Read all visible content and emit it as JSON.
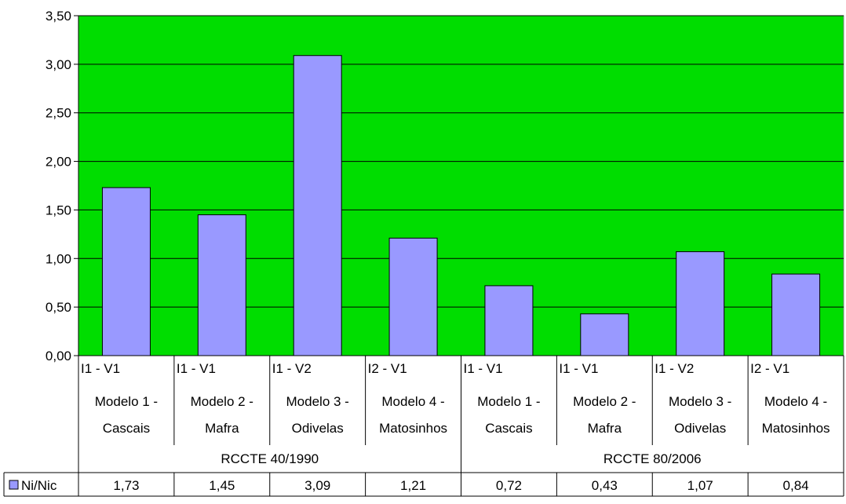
{
  "chart_data": {
    "type": "bar",
    "ylim": [
      0,
      3.5
    ],
    "y_ticks": [
      "0,00",
      "0,50",
      "1,00",
      "1,50",
      "2,00",
      "2,50",
      "3,00",
      "3,50"
    ],
    "grid": true,
    "plot_background": "#00DD00",
    "bar_color": "#9999FF",
    "categories": [
      {
        "code": "I1 - V1",
        "line1": "Modelo 1 -",
        "line2": "Cascais"
      },
      {
        "code": "I1 - V1",
        "line1": "Modelo 2 -",
        "line2": "Mafra"
      },
      {
        "code": "I1 - V2",
        "line1": "Modelo 3 -",
        "line2": "Odivelas"
      },
      {
        "code": "I2 - V1",
        "line1": "Modelo 4 -",
        "line2": "Matosinhos"
      },
      {
        "code": "I1 - V1",
        "line1": "Modelo 1 -",
        "line2": "Cascais"
      },
      {
        "code": "I1 - V1",
        "line1": "Modelo 2 -",
        "line2": "Mafra"
      },
      {
        "code": "I1 - V2",
        "line1": "Modelo 3 -",
        "line2": "Odivelas"
      },
      {
        "code": "I2 - V1",
        "line1": "Modelo 4 -",
        "line2": "Matosinhos"
      }
    ],
    "groups": [
      {
        "label": "RCCTE 40/1990",
        "span": 4
      },
      {
        "label": "RCCTE 80/2006",
        "span": 4
      }
    ],
    "series": [
      {
        "name": "Ni/Nic",
        "values": [
          1.73,
          1.45,
          3.09,
          1.21,
          0.72,
          0.43,
          1.07,
          0.84
        ],
        "value_labels": [
          "1,73",
          "1,45",
          "3,09",
          "1,21",
          "0,72",
          "0,43",
          "1,07",
          "0,84"
        ]
      }
    ],
    "legend": "data-table"
  }
}
